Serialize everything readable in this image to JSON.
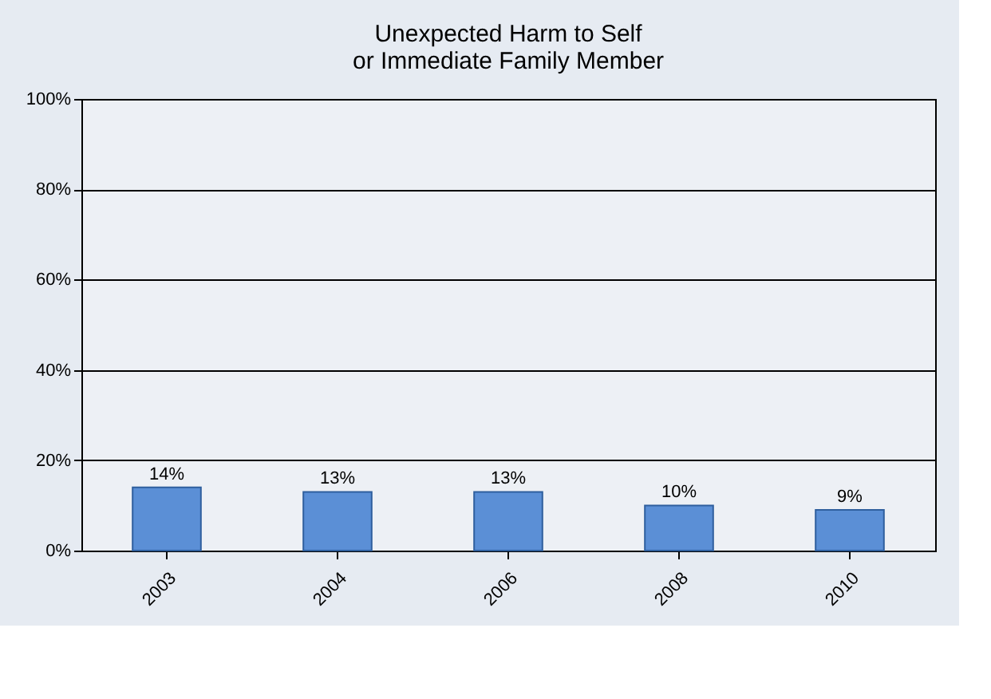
{
  "chart_data": {
    "type": "bar",
    "title": [
      "Unexpected Harm to Self",
      "or Immediate Family Member"
    ],
    "categories": [
      "2003",
      "2004",
      "2006",
      "2008",
      "2010"
    ],
    "values": [
      14,
      13,
      13,
      10,
      9
    ],
    "value_labels": [
      "14%",
      "13%",
      "13%",
      "10%",
      "9%"
    ],
    "color": "#5b8fd6",
    "ylim": [
      0,
      100
    ],
    "yticks": [
      {
        "value": 0,
        "label": "0%"
      },
      {
        "value": 20,
        "label": "20%"
      },
      {
        "value": 40,
        "label": "40%"
      },
      {
        "value": 60,
        "label": "60%"
      },
      {
        "value": 80,
        "label": "80%"
      },
      {
        "value": 100,
        "label": "100%"
      }
    ],
    "grid": "y"
  }
}
